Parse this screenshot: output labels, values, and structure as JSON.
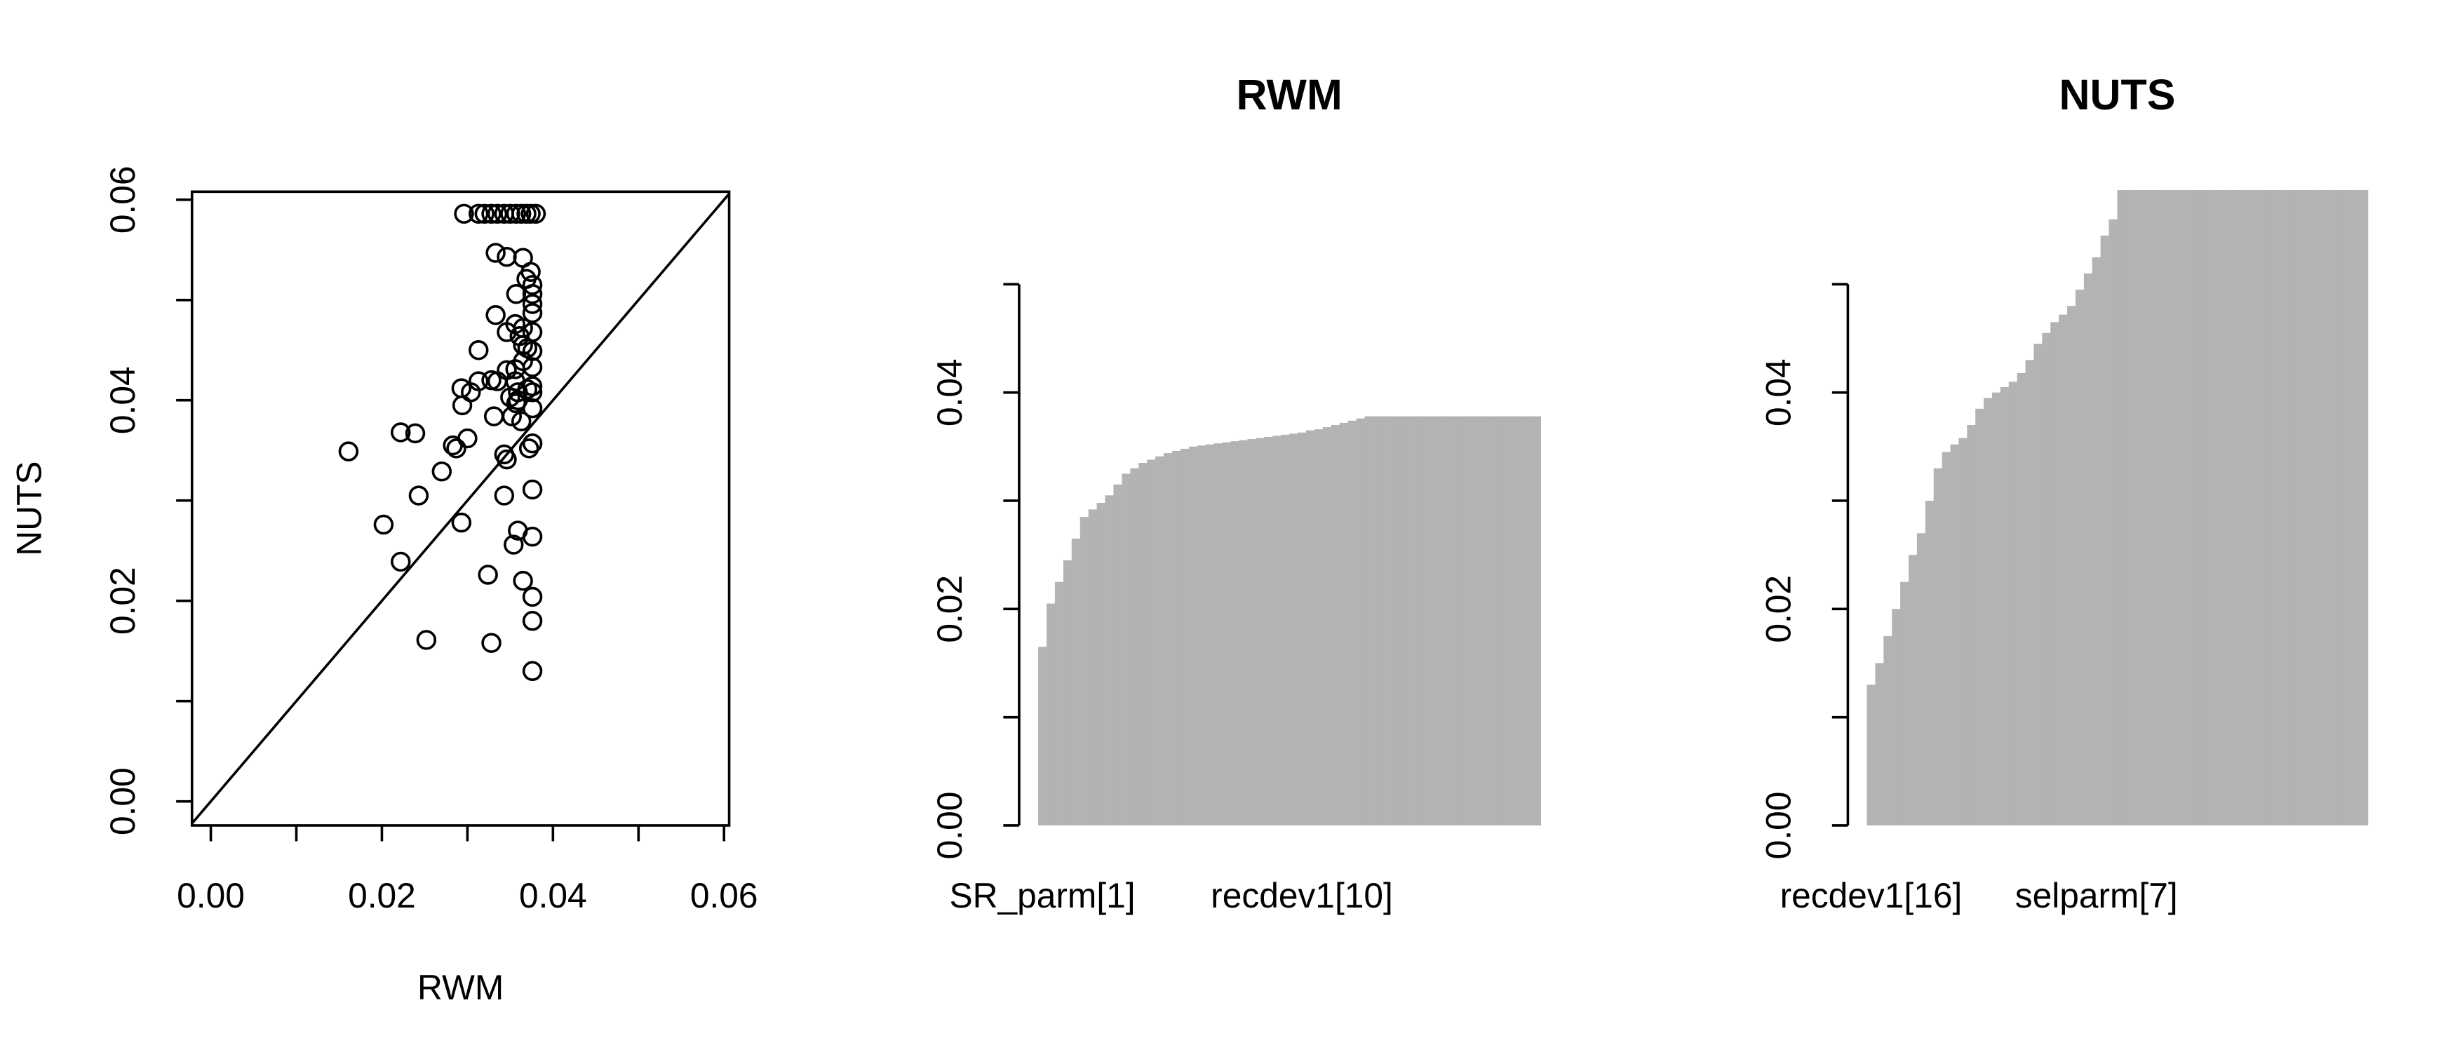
{
  "chart_data": [
    {
      "type": "scatter",
      "xlabel": "RWM",
      "ylabel": "NUTS",
      "xlim": [
        -0.0022,
        0.0606
      ],
      "ylim": [
        -0.0024,
        0.0608
      ],
      "xticks": [
        {
          "value": 0,
          "label": "0.00"
        },
        {
          "value": 0.02,
          "label": "0.02"
        },
        {
          "value": 0.04,
          "label": "0.04"
        },
        {
          "value": 0.06,
          "label": "0.06"
        }
      ],
      "yticks": [
        {
          "value": 0,
          "label": "0.00"
        },
        {
          "value": 0.02,
          "label": "0.02"
        },
        {
          "value": 0.04,
          "label": "0.04"
        },
        {
          "value": 0.06,
          "label": "0.06"
        }
      ],
      "xminorticks": [
        0.01,
        0.03,
        0.05
      ],
      "yminorticks": [
        0.01,
        0.03,
        0.05
      ],
      "reference_line": "y=x",
      "color": "#000000",
      "x": [
        0.0296,
        0.0313,
        0.032,
        0.0328,
        0.0335,
        0.0343,
        0.035,
        0.0357,
        0.0363,
        0.0369,
        0.0374,
        0.038,
        0.0333,
        0.0346,
        0.0365,
        0.0374,
        0.0369,
        0.0376,
        0.0357,
        0.0376,
        0.0376,
        0.0333,
        0.0376,
        0.0356,
        0.0365,
        0.0346,
        0.0361,
        0.0376,
        0.0365,
        0.037,
        0.0313,
        0.0376,
        0.0365,
        0.0376,
        0.0346,
        0.0356,
        0.0328,
        0.0335,
        0.0313,
        0.0356,
        0.0376,
        0.037,
        0.0293,
        0.0304,
        0.0359,
        0.0376,
        0.035,
        0.0359,
        0.0357,
        0.0294,
        0.0376,
        0.0222,
        0.0239,
        0.0352,
        0.0331,
        0.0363,
        0.03,
        0.0283,
        0.0287,
        0.0376,
        0.0372,
        0.0161,
        0.0343,
        0.0346,
        0.027,
        0.0243,
        0.0343,
        0.0376,
        0.0202,
        0.0293,
        0.0359,
        0.0354,
        0.0376,
        0.0222,
        0.0324,
        0.0365,
        0.0376,
        0.0376,
        0.0252,
        0.0328,
        0.0376
      ],
      "values": [
        0.0586,
        0.0586,
        0.0586,
        0.0586,
        0.0586,
        0.0586,
        0.0586,
        0.0586,
        0.0586,
        0.0586,
        0.0586,
        0.0586,
        0.0547,
        0.0543,
        0.0542,
        0.0528,
        0.0521,
        0.0515,
        0.0506,
        0.0506,
        0.0496,
        0.0485,
        0.0487,
        0.0476,
        0.0472,
        0.0468,
        0.0464,
        0.0468,
        0.0455,
        0.0452,
        0.045,
        0.0449,
        0.0439,
        0.0433,
        0.043,
        0.0431,
        0.042,
        0.0419,
        0.0419,
        0.0419,
        0.0414,
        0.0411,
        0.0412,
        0.0408,
        0.0408,
        0.0408,
        0.0403,
        0.04,
        0.0397,
        0.0395,
        0.0392,
        0.0368,
        0.0367,
        0.0384,
        0.0384,
        0.0379,
        0.0362,
        0.0355,
        0.0352,
        0.0357,
        0.0352,
        0.0349,
        0.0346,
        0.0341,
        0.0329,
        0.0305,
        0.0305,
        0.0311,
        0.0276,
        0.0278,
        0.027,
        0.0256,
        0.0264,
        0.0239,
        0.0226,
        0.022,
        0.0204,
        0.018,
        0.0161,
        0.0158,
        0.013
      ]
    },
    {
      "type": "bar",
      "title": "RWM",
      "color": "#b3b3b3",
      "ylim": [
        0,
        0.0587
      ],
      "yticks": [
        {
          "value": 0,
          "label": "0.00"
        },
        {
          "value": 0.02,
          "label": "0.02"
        },
        {
          "value": 0.04,
          "label": "0.04"
        }
      ],
      "yminorticks": [
        0.01,
        0.03,
        0.05
      ],
      "categories": [
        "SR_parm[1]",
        null,
        null,
        null,
        null,
        null,
        null,
        null,
        null,
        null,
        null,
        null,
        null,
        null,
        null,
        null,
        null,
        null,
        null,
        null,
        null,
        null,
        null,
        null,
        null,
        null,
        null,
        null,
        null,
        null,
        null,
        "recdev1[10]",
        null,
        null,
        null,
        null,
        null,
        null,
        null,
        null,
        null,
        null,
        null,
        null,
        null,
        null,
        null,
        null,
        null,
        null,
        null,
        null,
        null,
        null,
        null,
        null,
        null,
        null,
        null,
        null
      ],
      "values": [
        0.0165,
        0.0205,
        0.0225,
        0.0245,
        0.0265,
        0.0285,
        0.0292,
        0.0298,
        0.0305,
        0.0315,
        0.0325,
        0.033,
        0.0335,
        0.0338,
        0.0341,
        0.0344,
        0.0346,
        0.0348,
        0.035,
        0.0351,
        0.0352,
        0.0353,
        0.0354,
        0.0355,
        0.0356,
        0.0357,
        0.0358,
        0.0359,
        0.036,
        0.0361,
        0.0362,
        0.0363,
        0.0365,
        0.0366,
        0.0368,
        0.037,
        0.0372,
        0.0374,
        0.0376,
        0.0378,
        0.0378,
        0.0378,
        0.0378,
        0.0378,
        0.0378,
        0.0378,
        0.0378,
        0.0378,
        0.0378,
        0.0378,
        0.0378,
        0.0378,
        0.0378,
        0.0378,
        0.0378,
        0.0378,
        0.0378,
        0.0378,
        0.0378,
        0.0378
      ]
    },
    {
      "type": "bar",
      "title": "NUTS",
      "color": "#b3b3b3",
      "ylim": [
        0,
        0.0587
      ],
      "yticks": [
        {
          "value": 0,
          "label": "0.00"
        },
        {
          "value": 0.02,
          "label": "0.02"
        },
        {
          "value": 0.04,
          "label": "0.04"
        }
      ],
      "yminorticks": [
        0.01,
        0.03,
        0.05
      ],
      "categories": [
        "recdev1[16]",
        null,
        null,
        null,
        null,
        null,
        null,
        null,
        null,
        null,
        null,
        null,
        null,
        null,
        null,
        null,
        null,
        null,
        null,
        null,
        null,
        null,
        null,
        null,
        null,
        null,
        null,
        "selparm[7]",
        null,
        null,
        null,
        null,
        null,
        null,
        null,
        null,
        null,
        null,
        null,
        null,
        null,
        null,
        null,
        null,
        null,
        null,
        null,
        null,
        null,
        null,
        null,
        null,
        null,
        null,
        null,
        null,
        null,
        null,
        null,
        null
      ],
      "values": [
        0.013,
        0.015,
        0.0175,
        0.02,
        0.0225,
        0.025,
        0.027,
        0.03,
        0.033,
        0.0345,
        0.0352,
        0.0358,
        0.037,
        0.0385,
        0.0395,
        0.04,
        0.0405,
        0.041,
        0.0418,
        0.043,
        0.0445,
        0.0455,
        0.0465,
        0.0472,
        0.048,
        0.0495,
        0.051,
        0.0525,
        0.0545,
        0.056,
        0.0587,
        0.0587,
        0.0587,
        0.0587,
        0.0587,
        0.0587,
        0.0587,
        0.0587,
        0.0587,
        0.0587,
        0.0587,
        0.0587,
        0.0587,
        0.0587,
        0.0587,
        0.0587,
        0.0587,
        0.0587,
        0.0587,
        0.0587,
        0.0587,
        0.0587,
        0.0587,
        0.0587,
        0.0587,
        0.0587,
        0.0587,
        0.0587,
        0.0587,
        0.0587
      ]
    }
  ]
}
